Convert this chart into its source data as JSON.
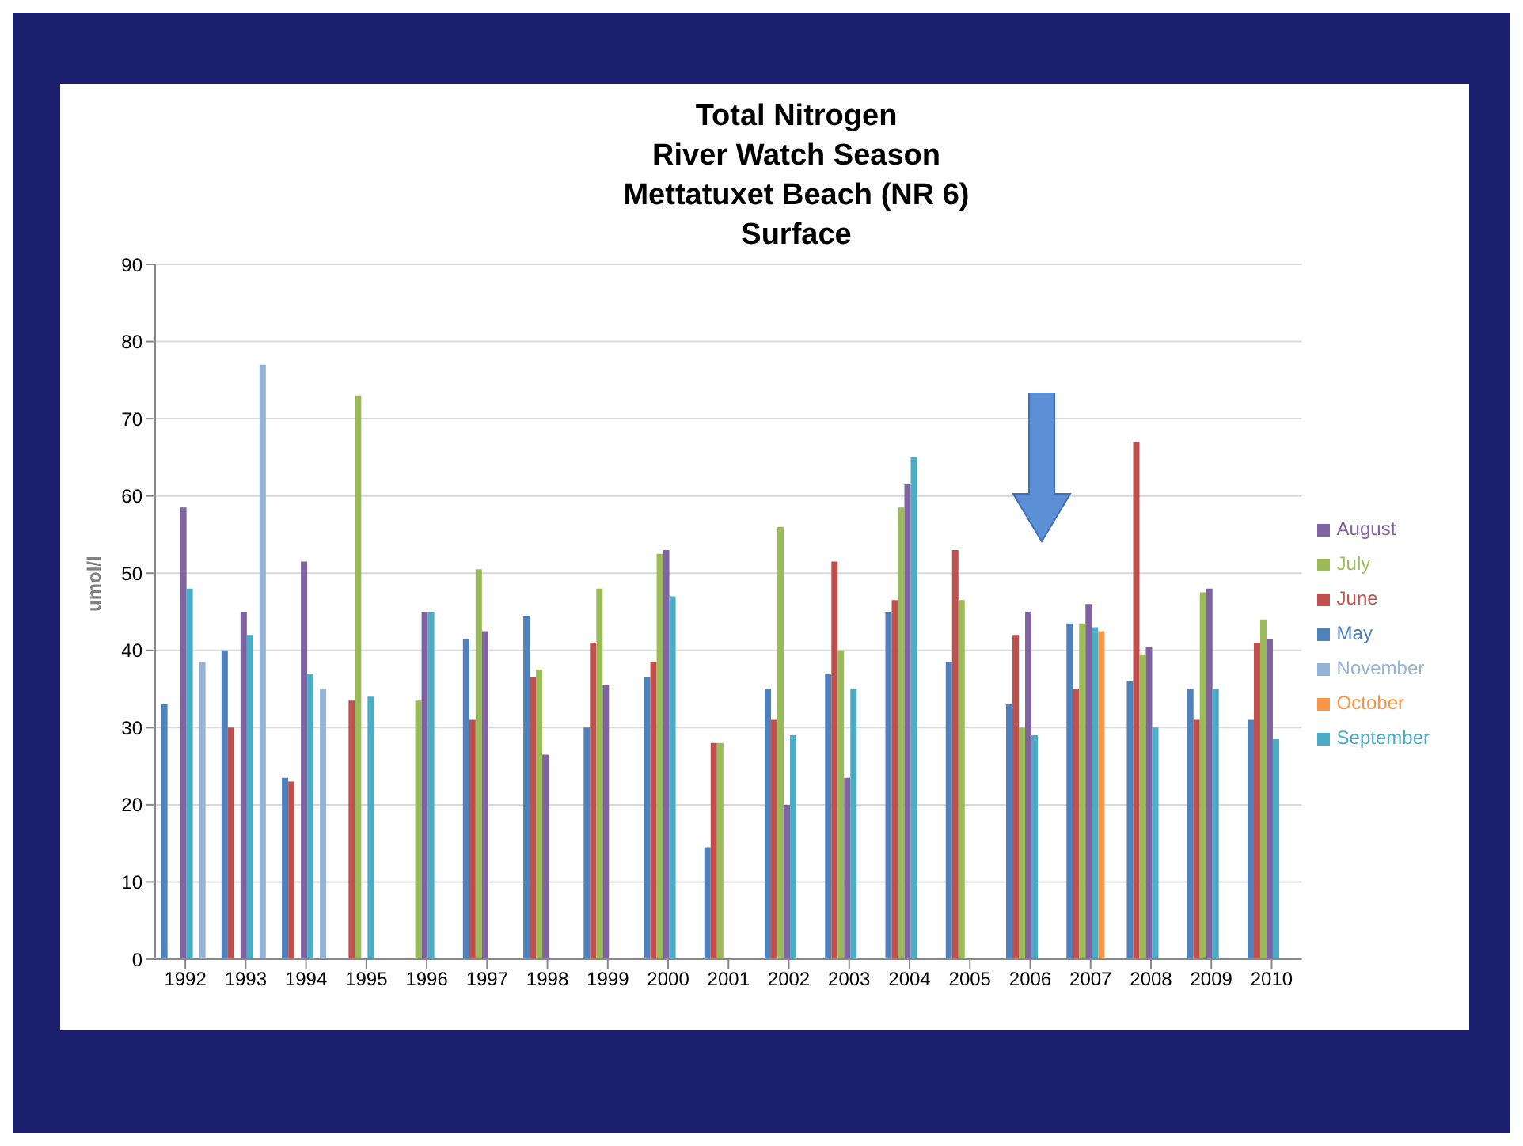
{
  "chart_data": {
    "type": "bar",
    "title": "Total Nitrogen\nRiver Watch Season\nMettatuxet Beach (NR 6)\nSurface",
    "ylabel": "umol/l",
    "categories": [
      "1992",
      "1993",
      "1994",
      "1995",
      "1996",
      "1997",
      "1998",
      "1999",
      "2000",
      "2001",
      "2002",
      "2003",
      "2004",
      "2005",
      "2006",
      "2007",
      "2008",
      "2009",
      "2010"
    ],
    "series": [
      {
        "name": "May",
        "color": "#4f81bd",
        "values": [
          33,
          40,
          23.5,
          null,
          null,
          41.5,
          44.5,
          30,
          36.5,
          14.5,
          35,
          37,
          45,
          38.5,
          33,
          43.5,
          36,
          35,
          31
        ]
      },
      {
        "name": "June",
        "color": "#c0504d",
        "values": [
          null,
          30,
          23,
          33.5,
          null,
          31,
          36.5,
          41,
          38.5,
          28,
          31,
          51.5,
          46.5,
          53,
          42,
          35,
          67,
          31,
          41
        ]
      },
      {
        "name": "July",
        "color": "#9bbb59",
        "values": [
          null,
          null,
          null,
          73,
          33.5,
          50.5,
          37.5,
          48,
          52.5,
          28,
          56,
          40,
          58.5,
          46.5,
          30,
          43.5,
          39.5,
          47.5,
          44
        ]
      },
      {
        "name": "August",
        "color": "#8064a2",
        "values": [
          58.5,
          45,
          51.5,
          null,
          45,
          42.5,
          26.5,
          35.5,
          53,
          null,
          20,
          23.5,
          61.5,
          null,
          45,
          46,
          40.5,
          48,
          41.5
        ]
      },
      {
        "name": "September",
        "color": "#4bacc6",
        "values": [
          48,
          42,
          37,
          34,
          45,
          null,
          null,
          null,
          47,
          null,
          29,
          35,
          65,
          null,
          29,
          43,
          30,
          35,
          28.5
        ]
      },
      {
        "name": "October",
        "color": "#f79646",
        "values": [
          null,
          null,
          null,
          null,
          null,
          null,
          null,
          null,
          null,
          null,
          null,
          null,
          null,
          null,
          null,
          42.5,
          null,
          null,
          null
        ]
      },
      {
        "name": "November",
        "color": "#95b3d7",
        "values": [
          38.5,
          77,
          35,
          null,
          null,
          null,
          null,
          null,
          null,
          null,
          null,
          null,
          null,
          null,
          null,
          null,
          null,
          null,
          null
        ]
      }
    ],
    "ylim": [
      0,
      90
    ],
    "yticks": [
      0,
      10,
      20,
      30,
      40,
      50,
      60,
      70,
      80,
      90
    ],
    "grid": "y",
    "legend": "right"
  }
}
